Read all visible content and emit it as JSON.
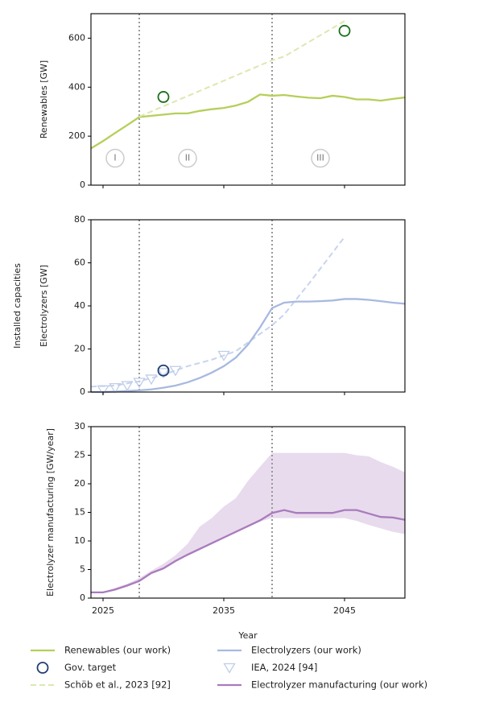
{
  "chart_data": [
    {
      "type": "line",
      "ylabel": "Renewables [GW]",
      "xlim": [
        2024,
        2050
      ],
      "xticks": [
        2025,
        2035,
        2045
      ],
      "show_xtick_labels": false,
      "ylim": [
        0,
        700
      ],
      "yticks": [
        0,
        200,
        400,
        600
      ],
      "vlines": [
        2028,
        2039
      ],
      "annotations": [
        {
          "text": "I",
          "x": 2026,
          "y": 110
        },
        {
          "text": "II",
          "x": 2032,
          "y": 110
        },
        {
          "text": "III",
          "x": 2043,
          "y": 110
        }
      ],
      "series": [
        {
          "name": "Renewables (our work)",
          "style": "line",
          "color": "#b5cf5a",
          "x": [
            2024,
            2025,
            2026,
            2027,
            2028,
            2029,
            2030,
            2031,
            2032,
            2033,
            2034,
            2035,
            2036,
            2037,
            2038,
            2039,
            2040,
            2041,
            2042,
            2043,
            2044,
            2045,
            2046,
            2047,
            2048,
            2049,
            2050
          ],
          "values": [
            150,
            180,
            213,
            245,
            278,
            283,
            288,
            293,
            293,
            303,
            310,
            315,
            325,
            340,
            370,
            365,
            368,
            362,
            357,
            355,
            365,
            360,
            350,
            350,
            345,
            352,
            358
          ]
        },
        {
          "name": "Schöb et al., 2023 [92]",
          "style": "dashed",
          "color": "#dce8b0",
          "x": [
            2028,
            2039,
            2040,
            2045
          ],
          "values": [
            280,
            510,
            525,
            670
          ]
        },
        {
          "style": "circle",
          "color": "#1b6e1b",
          "x": [
            2030,
            2045
          ],
          "values": [
            360,
            630
          ]
        }
      ]
    },
    {
      "type": "line",
      "ylabel": "Electrolyzers [GW]",
      "supylabel": "Installed capacities",
      "xlim": [
        2024,
        2050
      ],
      "xticks": [
        2025,
        2035,
        2045
      ],
      "show_xtick_labels": false,
      "ylim": [
        0,
        80
      ],
      "yticks": [
        0,
        20,
        40,
        60,
        80
      ],
      "vlines": [
        2028,
        2039
      ],
      "series": [
        {
          "style": "dashed",
          "color": "#c8d4ee",
          "x": [
            2024,
            2026,
            2028,
            2030,
            2032,
            2034,
            2036,
            2038,
            2039,
            2040,
            2042,
            2045
          ],
          "values": [
            2.5,
            3,
            5,
            8,
            12,
            15,
            19,
            27,
            31,
            36,
            50,
            72
          ]
        },
        {
          "name": "Electrolyzers (our work)",
          "style": "line",
          "color": "#a8b9e0",
          "x": [
            2024,
            2025,
            2026,
            2027,
            2028,
            2029,
            2030,
            2031,
            2032,
            2033,
            2034,
            2035,
            2036,
            2037,
            2038,
            2039,
            2040,
            2041,
            2042,
            2043,
            2044,
            2045,
            2046,
            2047,
            2048,
            2049,
            2050
          ],
          "values": [
            0,
            0,
            0.2,
            0.5,
            0.8,
            1.2,
            2,
            3,
            4.5,
            6.5,
            9,
            12,
            16,
            22,
            30,
            39,
            41.5,
            42,
            42,
            42.2,
            42.5,
            43.2,
            43.2,
            42.8,
            42.2,
            41.5,
            41
          ]
        },
        {
          "name": "IEA, 2024 [94]",
          "style": "triangle",
          "color": "#c0cde8",
          "x": [
            2025,
            2026,
            2027,
            2028,
            2029,
            2030,
            2031,
            2035
          ],
          "values": [
            1,
            2,
            3,
            4.5,
            6,
            9,
            10,
            17
          ]
        },
        {
          "name": "Gov. target",
          "style": "circle",
          "color": "#1f3d73",
          "x": [
            2030
          ],
          "values": [
            10
          ]
        }
      ]
    },
    {
      "type": "line",
      "ylabel": "Electrolyzer manufacturing [GW/year]",
      "xlabel": "Year",
      "xlim": [
        2024,
        2050
      ],
      "xticks": [
        2025,
        2035,
        2045
      ],
      "show_xtick_labels": true,
      "ylim": [
        0,
        30
      ],
      "yticks": [
        0,
        5,
        10,
        15,
        20,
        25,
        30
      ],
      "vlines": [
        2028,
        2039
      ],
      "band": {
        "color": "#e8dbed",
        "x": [
          2024,
          2025,
          2026,
          2027,
          2028,
          2029,
          2030,
          2031,
          2032,
          2033,
          2034,
          2035,
          2036,
          2037,
          2038,
          2039,
          2040,
          2041,
          2042,
          2043,
          2044,
          2045,
          2046,
          2047,
          2048,
          2049,
          2050
        ],
        "lower": [
          1,
          1,
          1.4,
          2,
          2.8,
          4.2,
          5,
          6.3,
          7.4,
          8.4,
          9.4,
          10.4,
          11.4,
          12.4,
          13.4,
          14,
          14,
          14,
          14,
          14,
          14,
          14,
          13.5,
          12.8,
          12.2,
          11.6,
          11.2
        ],
        "upper": [
          1,
          1,
          1.8,
          2.5,
          3.5,
          4.8,
          6,
          7.5,
          9.5,
          12.5,
          14,
          16,
          17.5,
          20.5,
          23,
          25.4,
          25.4,
          25.4,
          25.4,
          25.4,
          25.4,
          25.4,
          25,
          24.8,
          23.8,
          23,
          22
        ]
      },
      "series": [
        {
          "name": "Electrolyzer manufacturing (our work)",
          "style": "line",
          "color": "#a97bbd",
          "x": [
            2024,
            2025,
            2026,
            2027,
            2028,
            2029,
            2030,
            2031,
            2032,
            2033,
            2034,
            2035,
            2036,
            2037,
            2038,
            2039,
            2040,
            2041,
            2042,
            2043,
            2044,
            2045,
            2046,
            2047,
            2048,
            2049,
            2050
          ],
          "values": [
            1,
            1,
            1.5,
            2.2,
            3,
            4.4,
            5.2,
            6.5,
            7.6,
            8.6,
            9.6,
            10.6,
            11.6,
            12.6,
            13.6,
            14.9,
            15.4,
            14.9,
            14.9,
            14.9,
            14.9,
            15.4,
            15.4,
            14.8,
            14.2,
            14.1,
            13.7
          ]
        }
      ]
    }
  ],
  "legend": [
    "chart_data.0.series.0",
    "chart_data.1.series.3",
    "chart_data.0.series.1",
    "chart_data.1.series.1",
    "chart_data.1.series.2",
    "chart_data.2.series.0"
  ]
}
